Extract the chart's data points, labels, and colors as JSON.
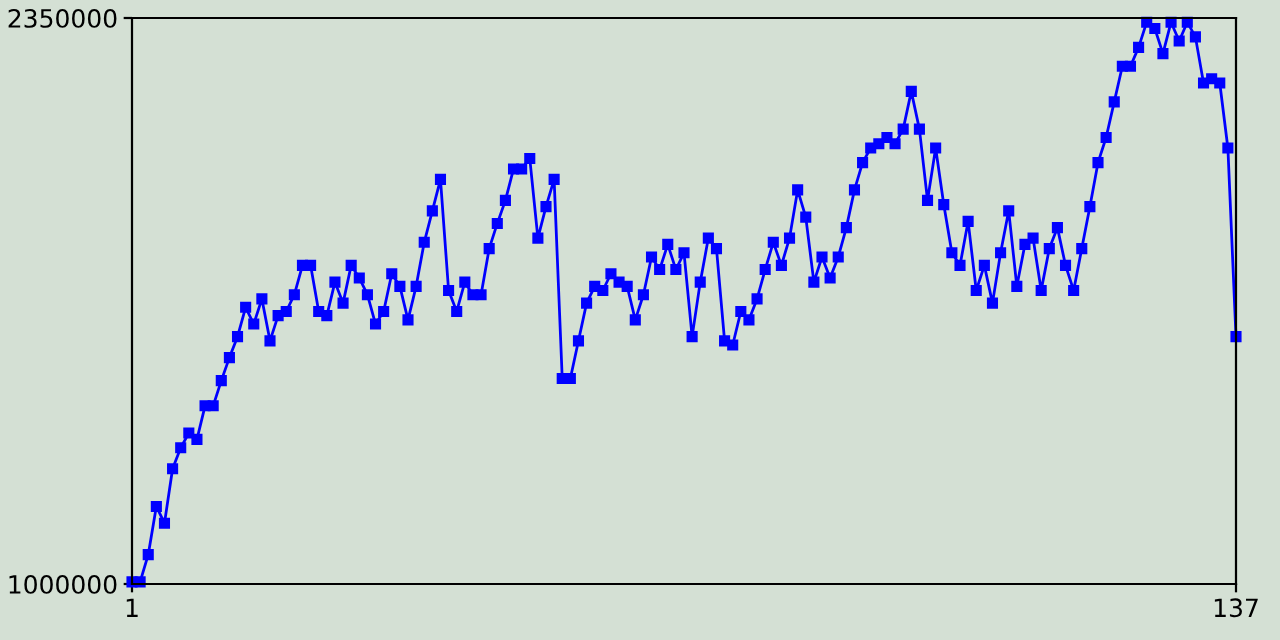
{
  "chart_data": {
    "type": "line",
    "x": [
      1,
      2,
      3,
      4,
      5,
      6,
      7,
      8,
      9,
      10,
      11,
      12,
      13,
      14,
      15,
      16,
      17,
      18,
      19,
      20,
      21,
      22,
      23,
      24,
      25,
      26,
      27,
      28,
      29,
      30,
      31,
      32,
      33,
      34,
      35,
      36,
      37,
      38,
      39,
      40,
      41,
      42,
      43,
      44,
      45,
      46,
      47,
      48,
      49,
      50,
      51,
      52,
      53,
      54,
      55,
      56,
      57,
      58,
      59,
      60,
      61,
      62,
      63,
      64,
      65,
      66,
      67,
      68,
      69,
      70,
      71,
      72,
      73,
      74,
      75,
      76,
      77,
      78,
      79,
      80,
      81,
      82,
      83,
      84,
      85,
      86,
      87,
      88,
      89,
      90,
      91,
      92,
      93,
      94,
      95,
      96,
      97,
      98,
      99,
      100,
      101,
      102,
      103,
      104,
      105,
      106,
      107,
      108,
      109,
      110,
      111,
      112,
      113,
      114,
      115,
      116,
      117,
      118,
      119,
      120,
      121,
      122,
      123,
      124,
      125,
      126,
      127,
      128,
      129,
      130,
      131,
      132,
      133,
      134,
      135,
      136,
      137
    ],
    "series": [
      {
        "color": "#0000ff",
        "values": [
          1005000,
          1005000,
          1070000,
          1185000,
          1145000,
          1275000,
          1325000,
          1360000,
          1345000,
          1425000,
          1425000,
          1485000,
          1540000,
          1590000,
          1660000,
          1620000,
          1680000,
          1580000,
          1640000,
          1650000,
          1690000,
          1760000,
          1760000,
          1650000,
          1640000,
          1720000,
          1670000,
          1760000,
          1730000,
          1690000,
          1620000,
          1650000,
          1740000,
          1710000,
          1630000,
          1710000,
          1815000,
          1890000,
          1965000,
          1700000,
          1650000,
          1720000,
          1690000,
          1690000,
          1800000,
          1860000,
          1915000,
          1990000,
          1990000,
          2015000,
          1825000,
          1900000,
          1965000,
          1490000,
          1490000,
          1580000,
          1670000,
          1710000,
          1700000,
          1740000,
          1720000,
          1710000,
          1630000,
          1690000,
          1780000,
          1750000,
          1810000,
          1750000,
          1790000,
          1590000,
          1720000,
          1825000,
          1800000,
          1580000,
          1570000,
          1650000,
          1630000,
          1680000,
          1750000,
          1815000,
          1760000,
          1825000,
          1940000,
          1875000,
          1720000,
          1780000,
          1730000,
          1780000,
          1850000,
          1940000,
          2005000,
          2040000,
          2050000,
          2065000,
          2050000,
          2085000,
          2175000,
          2085000,
          1915000,
          2040000,
          1905000,
          1790000,
          1760000,
          1865000,
          1700000,
          1760000,
          1670000,
          1790000,
          1890000,
          1710000,
          1810000,
          1825000,
          1700000,
          1800000,
          1850000,
          1760000,
          1700000,
          1800000,
          1900000,
          2005000,
          2065000,
          2150000,
          2235000,
          2235000,
          2280000,
          2340000,
          2325000,
          2265000,
          2340000,
          2295000,
          2340000,
          2305000,
          2195000,
          2205000,
          2195000,
          2040000,
          1590000
        ]
      }
    ],
    "xlim": [
      1,
      137
    ],
    "xticks": [
      1,
      137
    ],
    "ylim": [
      1000000,
      2350000
    ],
    "yticks": [
      1000000,
      2350000
    ],
    "grid": false,
    "legend": false,
    "marker": "square",
    "line_style": "solid"
  }
}
